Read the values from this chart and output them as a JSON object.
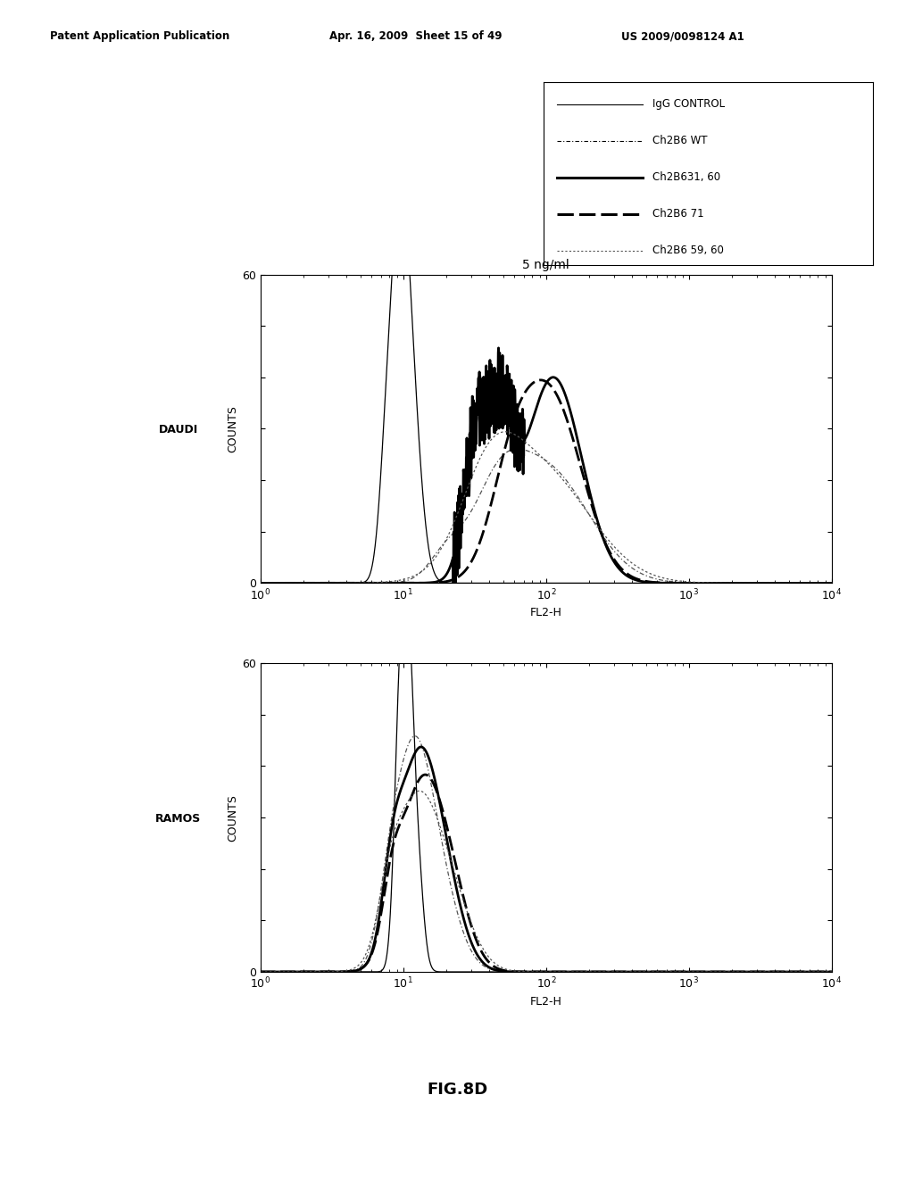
{
  "header_left": "Patent Application Publication",
  "header_mid": "Apr. 16, 2009  Sheet 15 of 49",
  "header_right": "US 2009/0098124 A1",
  "concentration": "5 ng/ml",
  "label_daudi": "DAUDI",
  "label_ramos": "RAMOS",
  "ylabel": "COUNTS",
  "xlabel": "FL2-H",
  "fig_label": "FIG.8D",
  "ylim": [
    0,
    60
  ],
  "background_color": "#ffffff"
}
